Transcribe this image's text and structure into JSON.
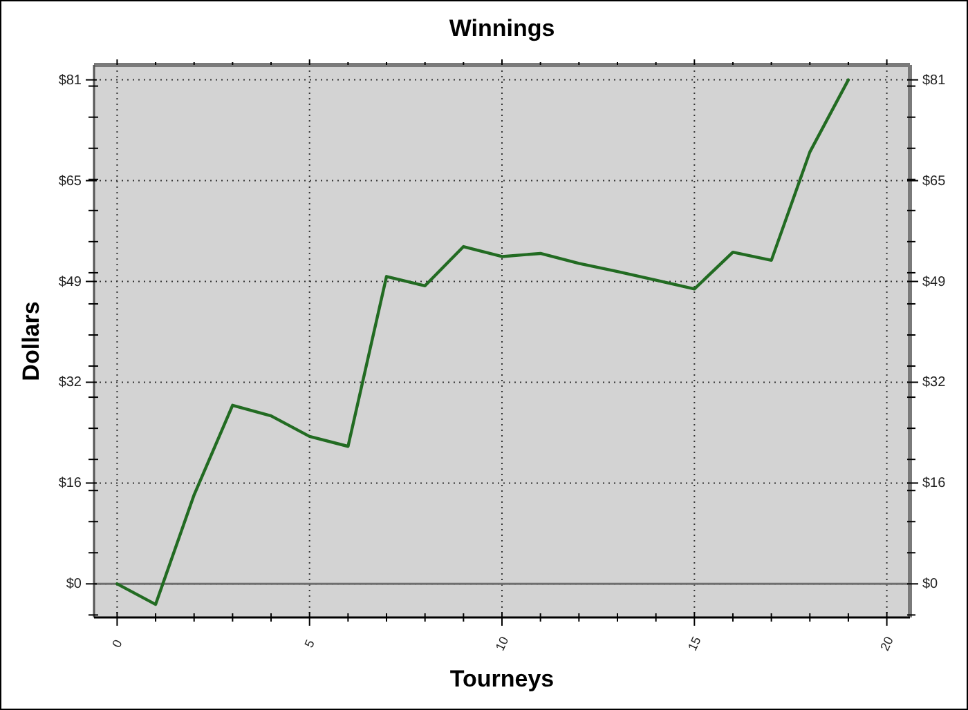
{
  "chart_data": {
    "type": "line",
    "title": "Winnings",
    "xlabel": "Tourneys",
    "ylabel": "Dollars",
    "x": [
      0,
      1,
      2,
      3,
      4,
      5,
      6,
      7,
      8,
      9,
      10,
      11,
      12,
      13,
      14,
      15,
      16,
      17,
      18,
      19
    ],
    "series": [
      {
        "color": "#226b22",
        "values": [
          0,
          -3.3,
          14.3,
          28.7,
          27.0,
          23.7,
          22.1,
          49.4,
          47.9,
          54.2,
          52.6,
          53.1,
          51.5,
          50.2,
          48.8,
          47.4,
          53.3,
          52.0,
          69.4,
          81
        ]
      }
    ],
    "xlim": [
      -0.6,
      20.6
    ],
    "xticks": [
      0,
      {
        "value": 1,
        "label": null
      },
      {
        "value": 2,
        "label": null
      },
      {
        "value": 3,
        "label": null
      },
      {
        "value": 4,
        "label": null
      },
      5,
      {
        "value": 6,
        "label": null
      },
      {
        "value": 7,
        "label": null
      },
      {
        "value": 8,
        "label": null
      },
      {
        "value": 9,
        "label": null
      },
      10,
      {
        "value": 11,
        "label": null
      },
      {
        "value": 12,
        "label": null
      },
      {
        "value": 13,
        "label": null
      },
      {
        "value": 14,
        "label": null
      },
      15,
      {
        "value": 16,
        "label": null
      },
      {
        "value": 17,
        "label": null
      },
      {
        "value": 18,
        "label": null
      },
      {
        "value": 19,
        "label": null
      },
      20
    ],
    "ylim": [
      -5.4,
      83.4
    ],
    "yticks": [
      {
        "value": -5,
        "label": null
      },
      {
        "value": 0,
        "label": "$0"
      },
      {
        "value": 5,
        "label": null
      },
      {
        "value": 10,
        "label": null
      },
      {
        "value": 15,
        "label": null
      },
      {
        "value": 16.2,
        "label": "$16"
      },
      {
        "value": 20,
        "label": null
      },
      {
        "value": 25,
        "label": null
      },
      {
        "value": 30,
        "label": null
      },
      {
        "value": 32.4,
        "label": "$32"
      },
      {
        "value": 35,
        "label": null
      },
      {
        "value": 40,
        "label": null
      },
      {
        "value": 45,
        "label": null
      },
      {
        "value": 48.6,
        "label": "$49"
      },
      {
        "value": 50,
        "label": null
      },
      {
        "value": 55,
        "label": null
      },
      {
        "value": 60,
        "label": null
      },
      {
        "value": 64.8,
        "label": "$65"
      },
      {
        "value": 65,
        "label": null
      },
      {
        "value": 70,
        "label": null
      },
      {
        "value": 75,
        "label": null
      },
      {
        "value": 80,
        "label": null
      },
      {
        "value": 81,
        "label": "$81"
      }
    ],
    "y2lim": [
      -5.4,
      83.4
    ],
    "y2ticks": [
      {
        "value": -5,
        "label": null
      },
      {
        "value": 0,
        "label": "$0"
      },
      {
        "value": 5,
        "label": null
      },
      {
        "value": 10,
        "label": null
      },
      {
        "value": 15,
        "label": null
      },
      {
        "value": 16.2,
        "label": "$16"
      },
      {
        "value": 20,
        "label": null
      },
      {
        "value": 25,
        "label": null
      },
      {
        "value": 30,
        "label": null
      },
      {
        "value": 32.4,
        "label": "$32"
      },
      {
        "value": 35,
        "label": null
      },
      {
        "value": 40,
        "label": null
      },
      {
        "value": 45,
        "label": null
      },
      {
        "value": 48.6,
        "label": "$49"
      },
      {
        "value": 50,
        "label": null
      },
      {
        "value": 55,
        "label": null
      },
      {
        "value": 60,
        "label": null
      },
      {
        "value": 64.8,
        "label": "$65"
      },
      {
        "value": 65,
        "label": null
      },
      {
        "value": 70,
        "label": null
      },
      {
        "value": 75,
        "label": null
      },
      {
        "value": 80,
        "label": null
      },
      {
        "value": 81,
        "label": "$81"
      }
    ],
    "grid": true,
    "ref_lines": [
      {
        "axis": "y",
        "value": 0,
        "color": "#6e6e6e"
      }
    ]
  }
}
